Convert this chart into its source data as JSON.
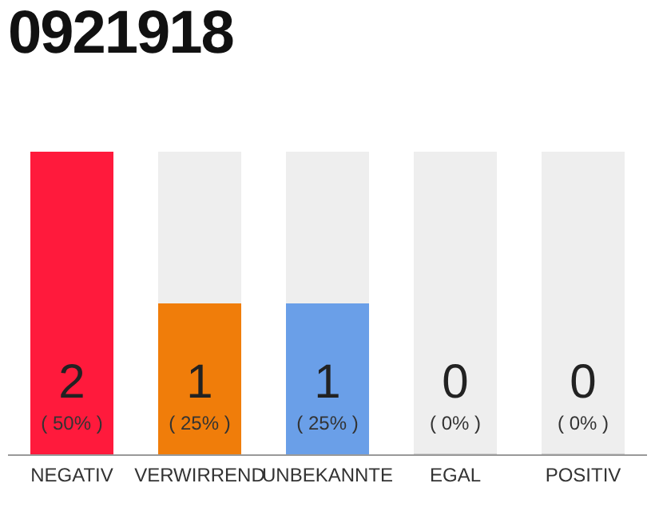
{
  "chart_data": {
    "type": "bar",
    "title": "0921918",
    "categories": [
      "NEGATIV",
      "VERWIRREND",
      "UNBEKANNTE",
      "EGAL",
      "POSITIV"
    ],
    "values": [
      2,
      1,
      1,
      0,
      0
    ],
    "colors": [
      "#ff1a3c",
      "#f07d0a",
      "#6a9fe8",
      "#cccccc",
      "#cccccc"
    ],
    "ylim": [
      0,
      2
    ],
    "tick_labels": "x",
    "grid": false,
    "legend": false,
    "value_labels": [
      "2",
      "1",
      "1",
      "0",
      "0"
    ],
    "annotations": [
      "( 50% )",
      "( 25% )",
      "( 25% )",
      "( 0% )",
      "( 0% )"
    ]
  }
}
